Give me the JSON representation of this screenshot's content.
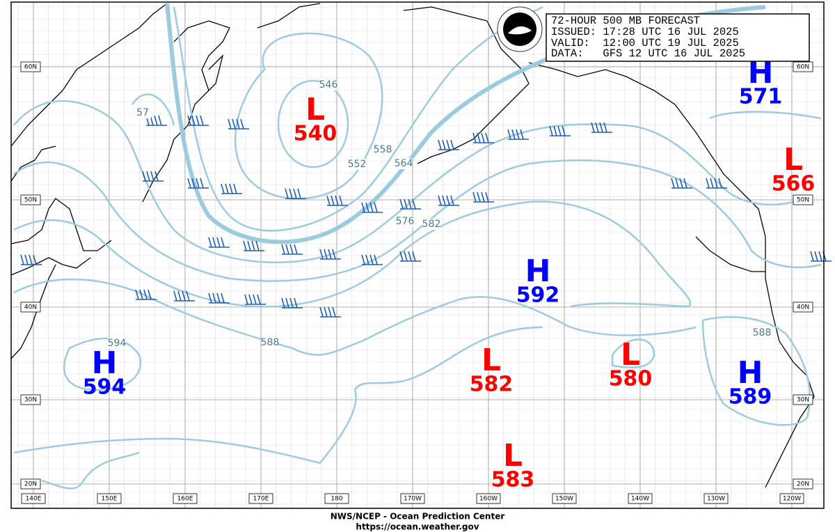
{
  "header": {
    "lines": [
      "72-HOUR 500 MB FORECAST",
      "ISSUED: 17:28 UTC 16 JUL 2025",
      "VALID:  12:00 UTC 19 JUL 2025",
      "DATA:   GFS 12 UTC 16 JUL 2025"
    ]
  },
  "latitude_labels": [
    "60N",
    "50N",
    "40N",
    "30N",
    "20N"
  ],
  "longitude_labels": [
    "140E",
    "150E",
    "160E",
    "170E",
    "180",
    "170W",
    "160W",
    "150W",
    "140W",
    "130W",
    "120W"
  ],
  "centers": [
    {
      "type": "L",
      "value": 540
    },
    {
      "type": "H",
      "value": 571
    },
    {
      "type": "L",
      "value": 566
    },
    {
      "type": "H",
      "value": 592
    },
    {
      "type": "H",
      "value": 594
    },
    {
      "type": "L",
      "value": 582
    },
    {
      "type": "L",
      "value": 580
    },
    {
      "type": "H",
      "value": 589
    },
    {
      "type": "L",
      "value": 583
    }
  ],
  "contour_labels": [
    546,
    552,
    558,
    564,
    57,
    576,
    582,
    588,
    594,
    588
  ],
  "footer": {
    "line1": "NWS/NCEP - Ocean Prediction Center",
    "line2": "https://ocean.weather.gov"
  }
}
